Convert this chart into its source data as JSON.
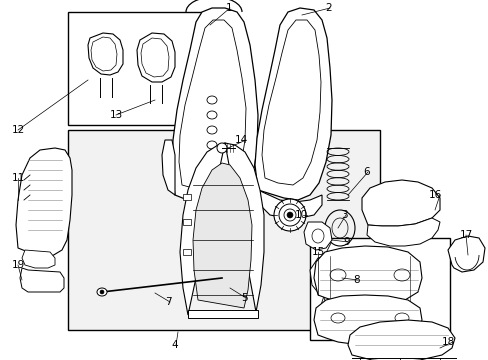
{
  "background_color": "#ffffff",
  "fig_width": 4.89,
  "fig_height": 3.6,
  "dpi": 100,
  "label_fontsize": 7.0,
  "label_color": "#000000",
  "line_color": "#000000",
  "gray_fill": "#f0f0f0",
  "gray_mid": "#e0e0e0",
  "gray_dark": "#cccccc",
  "gray_box": "#e8e8e8"
}
